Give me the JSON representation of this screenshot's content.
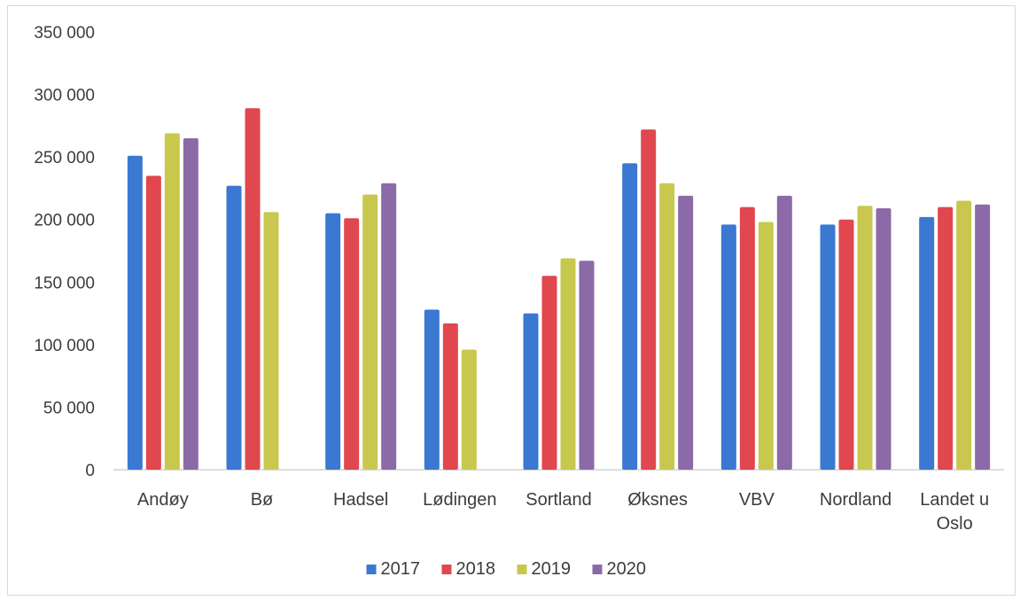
{
  "chart_data": {
    "type": "bar",
    "categories": [
      "Andøy",
      "Bø",
      "Hadsel",
      "Lødingen",
      "Sortland",
      "Øksnes",
      "VBV",
      "Nordland",
      "Landet u Oslo"
    ],
    "series": [
      {
        "name": "2017",
        "color": "#3a78d2",
        "values": [
          251000,
          227000,
          205000,
          128000,
          125000,
          245000,
          196000,
          196000,
          202000
        ]
      },
      {
        "name": "2018",
        "color": "#e0474f",
        "values": [
          235000,
          289000,
          201000,
          117000,
          155000,
          272000,
          210000,
          200000,
          210000
        ]
      },
      {
        "name": "2019",
        "color": "#c9c84e",
        "values": [
          269000,
          206000,
          220000,
          96000,
          169000,
          229000,
          198000,
          211000,
          215000
        ]
      },
      {
        "name": "2020",
        "color": "#8c6aa8",
        "values": [
          265000,
          null,
          229000,
          null,
          167000,
          219000,
          219000,
          209000,
          212000
        ]
      }
    ],
    "yticks": [
      "0",
      "50 000",
      "100 000",
      "150 000",
      "200 000",
      "250 000",
      "300 000",
      "350 000"
    ],
    "ylim": [
      0,
      350000
    ],
    "legend_position": "bottom",
    "grid": false,
    "title": "",
    "xlabel": "",
    "ylabel": ""
  }
}
